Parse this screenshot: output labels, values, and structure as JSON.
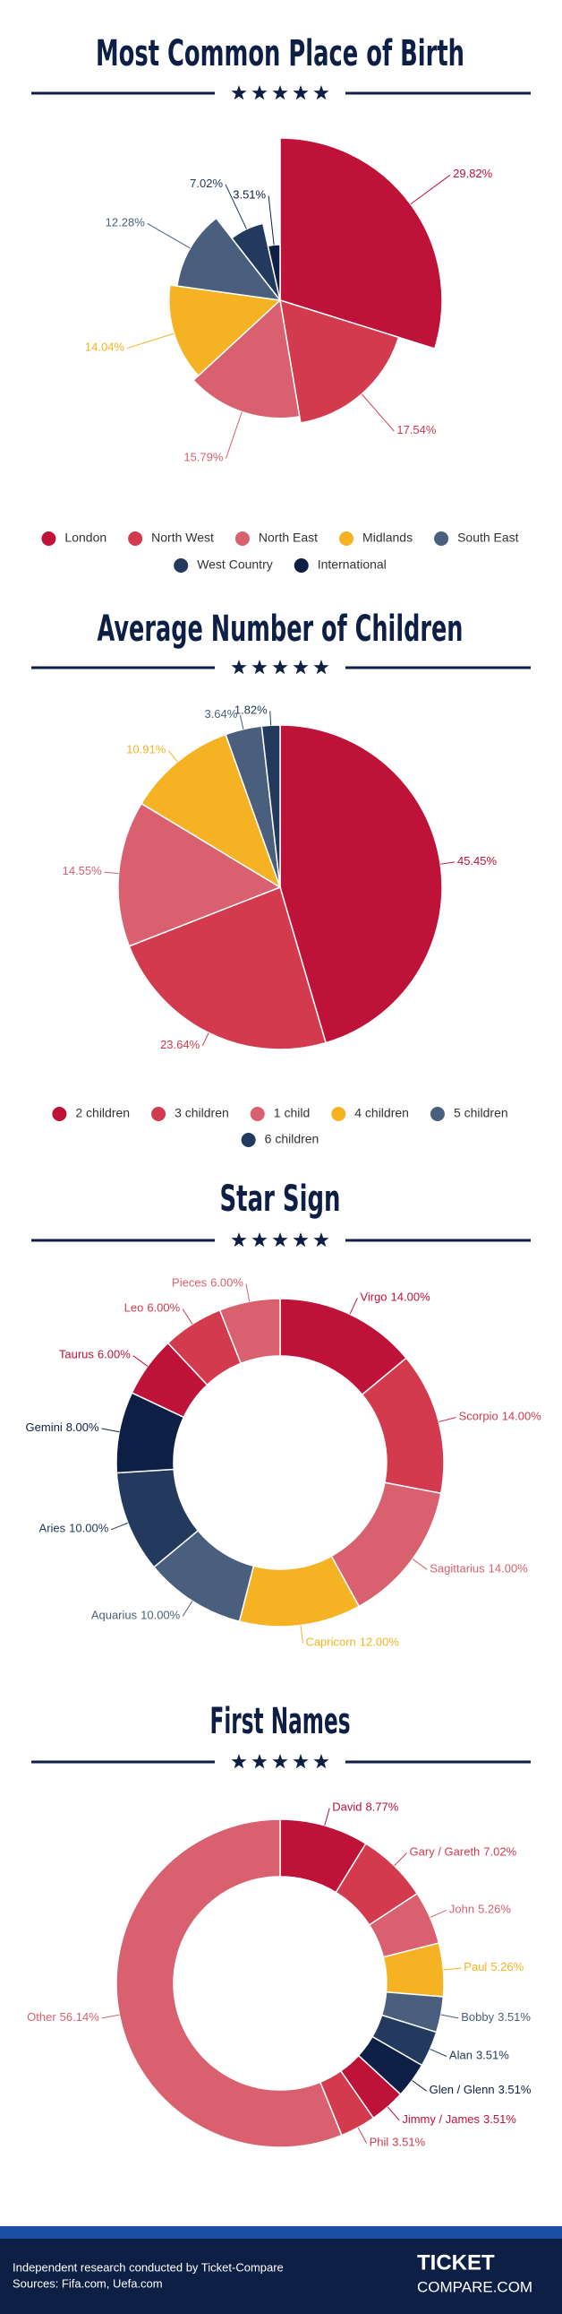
{
  "chart_data": [
    {
      "type": "pie",
      "variable_radius": true,
      "legend": "bottom",
      "title": "Most Common Place of Birth",
      "categories": [
        "London",
        "North West",
        "North East",
        "Midlands",
        "South East",
        "West Country",
        "International"
      ],
      "values": [
        29.82,
        17.54,
        15.79,
        14.04,
        12.28,
        7.02,
        3.51
      ],
      "value_labels": [
        "29.82%",
        "17.54%",
        "15.79%",
        "14.04%",
        "12.28%",
        "7.02%",
        "3.51%"
      ],
      "colors": [
        "#be1238",
        "#d33a4e",
        "#d9606e",
        "#f5b324",
        "#4a5f7e",
        "#233a5e",
        "#0e1f45"
      ]
    },
    {
      "type": "pie",
      "variable_radius": false,
      "legend": "bottom",
      "title": "Average Number of Children",
      "categories": [
        "2 children",
        "3 children",
        "1 child",
        "4 children",
        "5 children",
        "6 children"
      ],
      "values": [
        45.45,
        23.64,
        14.55,
        10.91,
        3.64,
        1.82
      ],
      "value_labels": [
        "45.45%",
        "23.64%",
        "14.55%",
        "10.91%",
        "3.64%",
        "1.82%"
      ],
      "colors": [
        "#be1238",
        "#d33a4e",
        "#d9606e",
        "#f5b324",
        "#4a5f7e",
        "#233a5e"
      ]
    },
    {
      "type": "donut",
      "title": "Star Sign",
      "categories": [
        "Virgo",
        "Scorpio",
        "Sagittarius",
        "Capricorn",
        "Aquarius",
        "Aries",
        "Gemini",
        "Taurus",
        "Leo",
        "Pieces"
      ],
      "values": [
        14.0,
        14.0,
        14.0,
        12.0,
        10.0,
        10.0,
        8.0,
        6.0,
        6.0,
        6.0
      ],
      "value_labels": [
        "14.00%",
        "14.00%",
        "14.00%",
        "12.00%",
        "10.00%",
        "10.00%",
        "8.00%",
        "6.00%",
        "6.00%",
        "6.00%"
      ],
      "colors": [
        "#be1238",
        "#d33a4e",
        "#d9606e",
        "#f5b324",
        "#4a5f7e",
        "#233a5e",
        "#0e1f45",
        "#be1238",
        "#d33a4e",
        "#d9606e"
      ]
    },
    {
      "type": "donut",
      "title": "First Names",
      "categories": [
        "David",
        "Gary / Gareth",
        "John",
        "Paul",
        "Bobby",
        "Alan",
        "Glen / Glenn",
        "Jimmy / James",
        "Phil",
        "Other"
      ],
      "values": [
        8.77,
        7.02,
        5.26,
        5.26,
        3.51,
        3.51,
        3.51,
        3.51,
        3.51,
        56.14
      ],
      "value_labels": [
        "8.77%",
        "7.02%",
        "5.26%",
        "5.26%",
        "3.51%",
        "3.51%",
        "3.51%",
        "3.51%",
        "3.51%",
        "56.14%"
      ],
      "colors": [
        "#be1238",
        "#d33a4e",
        "#d9606e",
        "#f5b324",
        "#4a5f7e",
        "#233a5e",
        "#0e1f45",
        "#be1238",
        "#d33a4e",
        "#d9606e"
      ]
    }
  ],
  "footer": {
    "lines": [
      "Independent research conducted by Ticket-Compare",
      "Sources: Fifa.com, Uefa.com"
    ],
    "logo": [
      "TICKET",
      "COMPARE.COM"
    ]
  }
}
